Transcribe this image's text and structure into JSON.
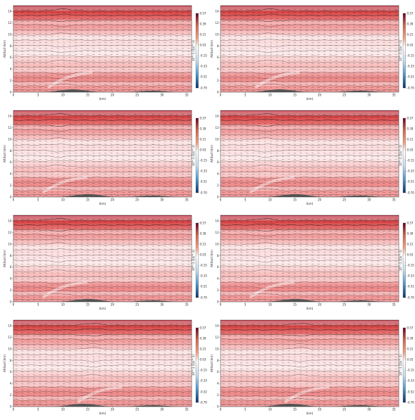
{
  "chart_data": [
    {
      "type": "contour",
      "panel": 1,
      "xlabel": "(km)",
      "ylabel": "Altitud (km)",
      "colorbar_label": "10^-1 (1/s^-1)",
      "xlim": [
        0,
        36
      ],
      "ylim": [
        0,
        15
      ],
      "xticks": [
        "0",
        "5",
        "10",
        "15",
        "20",
        "25",
        "30",
        "35"
      ],
      "yticks": [
        "0",
        "2",
        "4",
        "6",
        "8",
        "10",
        "12",
        "14"
      ],
      "colorbar_ticks": [
        "0.57",
        "0.39",
        "0.21",
        "0.03",
        "-0.15",
        "-0.33",
        "-0.51",
        "-0.70"
      ],
      "colorbar_range": [
        -0.7,
        0.57
      ],
      "grid": false,
      "layers_y": [
        0.4,
        1.1,
        1.8,
        2.6,
        3.4,
        4.3,
        5.2,
        6.2,
        7.2,
        8.1,
        9.0,
        9.9,
        10.8,
        11.7,
        12.5,
        13.3,
        14.1
      ],
      "terrain_peaks_km": [
        12,
        28
      ],
      "wave_center_km": 10
    },
    {
      "type": "contour",
      "panel": 2,
      "xlabel": "(km)",
      "ylabel": "Altitud (km)",
      "colorbar_label": "10^-1 (1/s^-1)",
      "xlim": [
        0,
        36
      ],
      "ylim": [
        0,
        15
      ],
      "xticks": [
        "0",
        "5",
        "10",
        "15",
        "20",
        "25",
        "30",
        "35"
      ],
      "yticks": [
        "0",
        "2",
        "4",
        "6",
        "8",
        "10",
        "12",
        "14"
      ],
      "colorbar_ticks": [
        "0.57",
        "0.39",
        "0.21",
        "0.03",
        "-0.15",
        "-0.33",
        "-0.51",
        "-0.70"
      ],
      "colorbar_range": [
        -0.7,
        0.57
      ],
      "grid": false,
      "layers_y": [
        0.4,
        1.1,
        1.8,
        2.6,
        3.4,
        4.3,
        5.2,
        6.2,
        7.2,
        8.1,
        9.0,
        9.9,
        10.8,
        11.7,
        12.5,
        13.3,
        14.1
      ],
      "terrain_peaks_km": [
        12,
        28
      ],
      "wave_center_km": 10
    },
    {
      "type": "contour",
      "panel": 3,
      "xlabel": "(km)",
      "ylabel": "Altitud (km)",
      "colorbar_label": "10^-1 (1/s^-1)",
      "xlim": [
        0,
        36
      ],
      "ylim": [
        0,
        15
      ],
      "xticks": [
        "0",
        "5",
        "10",
        "15",
        "20",
        "25",
        "30",
        "35"
      ],
      "yticks": [
        "0",
        "2",
        "4",
        "6",
        "8",
        "10",
        "12",
        "14"
      ],
      "colorbar_ticks": [
        "0.57",
        "0.39",
        "0.21",
        "0.03",
        "-0.15",
        "-0.33",
        "-0.51",
        "-0.70"
      ],
      "colorbar_range": [
        -0.7,
        0.57
      ],
      "grid": false,
      "layers_y": [
        0.4,
        1.1,
        1.8,
        2.6,
        3.4,
        4.3,
        5.2,
        6.2,
        7.2,
        8.1,
        9.0,
        9.9,
        10.8,
        11.7,
        12.5,
        13.3,
        14.1
      ],
      "terrain_peaks_km": [
        15,
        28
      ],
      "wave_center_km": 9
    },
    {
      "type": "contour",
      "panel": 4,
      "xlabel": "(km)",
      "ylabel": "Altitud (km)",
      "colorbar_label": "10^-1 (1/s^-1)",
      "xlim": [
        0,
        36
      ],
      "ylim": [
        0,
        15
      ],
      "xticks": [
        "0",
        "5",
        "10",
        "15",
        "20",
        "25",
        "30",
        "35"
      ],
      "yticks": [
        "0",
        "2",
        "4",
        "6",
        "8",
        "10",
        "12",
        "14"
      ],
      "colorbar_ticks": [
        "0.57",
        "0.39",
        "0.21",
        "0.03",
        "-0.15",
        "-0.33",
        "-0.51",
        "-0.70"
      ],
      "colorbar_range": [
        -0.7,
        0.57
      ],
      "grid": false,
      "layers_y": [
        0.4,
        1.1,
        1.8,
        2.6,
        3.4,
        4.3,
        5.2,
        6.2,
        7.2,
        8.1,
        9.0,
        9.9,
        10.8,
        11.7,
        12.5,
        13.3,
        14.1
      ],
      "terrain_peaks_km": [
        15,
        28
      ],
      "wave_center_km": 9
    },
    {
      "type": "contour",
      "panel": 5,
      "xlabel": "(km)",
      "ylabel": "Altitud (km)",
      "colorbar_label": "10^-1 (1/s^-1)",
      "xlim": [
        0,
        36
      ],
      "ylim": [
        0,
        15
      ],
      "xticks": [
        "0",
        "5",
        "10",
        "15",
        "20",
        "25",
        "30",
        "35"
      ],
      "yticks": [
        "0",
        "2",
        "4",
        "6",
        "8",
        "10",
        "12",
        "14"
      ],
      "colorbar_ticks": [
        "0.57",
        "0.39",
        "0.21",
        "0.03",
        "-0.15",
        "-0.33",
        "-0.51",
        "-0.70"
      ],
      "colorbar_range": [
        -0.7,
        0.57
      ],
      "grid": false,
      "layers_y": [
        0.4,
        1.1,
        1.8,
        2.6,
        3.4,
        4.3,
        5.2,
        6.2,
        7.2,
        8.1,
        9.0,
        9.9,
        10.8,
        11.7,
        12.5,
        13.3,
        14.1
      ],
      "terrain_peaks_km": [
        15,
        28
      ],
      "wave_center_km": 9
    },
    {
      "type": "contour",
      "panel": 6,
      "xlabel": "(km)",
      "ylabel": "Altitud (km)",
      "colorbar_label": "10^-1 (1/s^-1)",
      "xlim": [
        0,
        36
      ],
      "ylim": [
        0,
        15
      ],
      "xticks": [
        "0",
        "5",
        "10",
        "15",
        "20",
        "25",
        "30",
        "35"
      ],
      "yticks": [
        "0",
        "2",
        "4",
        "6",
        "8",
        "10",
        "12",
        "14"
      ],
      "colorbar_ticks": [
        "0.57",
        "0.39",
        "0.21",
        "0.03",
        "-0.15",
        "-0.33",
        "-0.51",
        "-0.70"
      ],
      "colorbar_range": [
        -0.7,
        0.57
      ],
      "grid": false,
      "layers_y": [
        0.4,
        1.1,
        1.8,
        2.6,
        3.4,
        4.3,
        5.2,
        6.2,
        7.2,
        8.1,
        9.0,
        9.9,
        10.8,
        11.7,
        12.5,
        13.3,
        14.1
      ],
      "terrain_peaks_km": [
        15,
        28
      ],
      "wave_center_km": 9
    },
    {
      "type": "contour",
      "panel": 7,
      "xlabel": "(km)",
      "ylabel": "Altitud (km)",
      "colorbar_label": "10^-1 (1/s^-1)",
      "xlim": [
        0,
        36
      ],
      "ylim": [
        0,
        15
      ],
      "xticks": [
        "0",
        "5",
        "10",
        "15",
        "20",
        "25",
        "30",
        "35"
      ],
      "yticks": [
        "0",
        "2",
        "4",
        "6",
        "8",
        "10",
        "12",
        "14"
      ],
      "colorbar_ticks": [
        "0.57",
        "0.39",
        "0.21",
        "0.03",
        "-0.15",
        "-0.33",
        "-0.52",
        "-0.70"
      ],
      "colorbar_range": [
        -0.7,
        0.57
      ],
      "grid": false,
      "layers_y": [
        0.4,
        1.1,
        1.8,
        2.6,
        3.4,
        4.3,
        5.2,
        6.2,
        7.2,
        8.1,
        9.0,
        9.9,
        10.8,
        11.7,
        12.5,
        13.3,
        14.1
      ],
      "terrain_peaks_km": [
        14,
        28
      ],
      "wave_center_km": 16
    },
    {
      "type": "contour",
      "panel": 8,
      "xlabel": "(km)",
      "ylabel": "Altitud (km)",
      "colorbar_label": "10^-1 (1/s^-1)",
      "xlim": [
        0,
        36
      ],
      "ylim": [
        0,
        15
      ],
      "xticks": [
        "0",
        "5",
        "10",
        "15",
        "20",
        "25",
        "30",
        "35"
      ],
      "yticks": [
        "0",
        "2",
        "4",
        "6",
        "8",
        "10",
        "12",
        "14"
      ],
      "colorbar_ticks": [
        "0.57",
        "0.39",
        "0.21",
        "0.03",
        "-0.15",
        "-0.33",
        "-0.52",
        "-0.70"
      ],
      "colorbar_range": [
        -0.7,
        0.57
      ],
      "grid": false,
      "layers_y": [
        0.4,
        1.1,
        1.8,
        2.6,
        3.4,
        4.3,
        5.2,
        6.2,
        7.2,
        8.1,
        9.0,
        9.9,
        10.8,
        11.7,
        12.5,
        13.3,
        14.1
      ],
      "terrain_peaks_km": [
        14,
        28
      ],
      "wave_center_km": 16
    }
  ],
  "colors": {
    "dark_red": "#b2182b",
    "mid_red": "#ef8a8a",
    "light_red": "#fbd3d3",
    "white": "#ffffff",
    "light_blue": "#c6dbef",
    "dark_blue": "#08306b",
    "terrain": "#555555",
    "contour": "#222222"
  }
}
